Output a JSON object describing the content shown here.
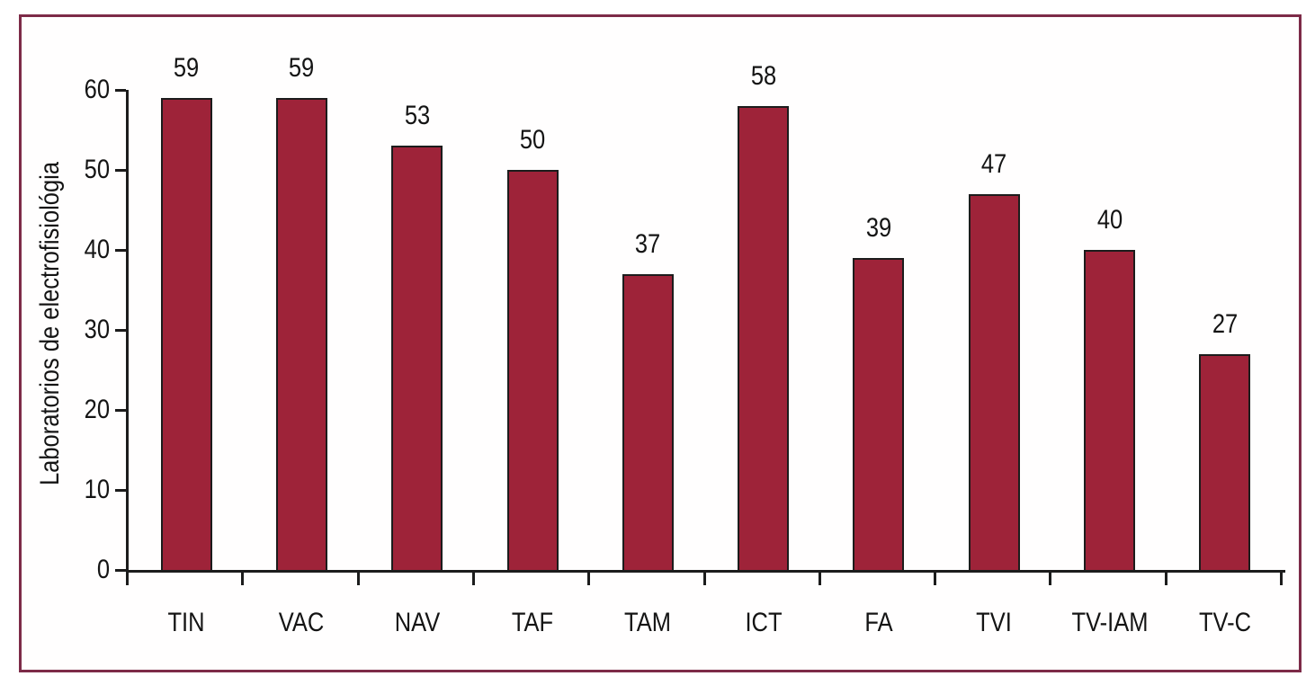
{
  "figure": {
    "kind": "bar chart",
    "frame_border_color": "#7d2b48"
  },
  "chart_data": {
    "type": "bar",
    "categories": [
      "TIN",
      "VAC",
      "NAV",
      "TAF",
      "TAM",
      "ICT",
      "FA",
      "TVI",
      "TV-IAM",
      "TV-C"
    ],
    "values": [
      59,
      59,
      53,
      50,
      37,
      58,
      39,
      47,
      40,
      27
    ],
    "value_labels": [
      59,
      59,
      53,
      50,
      37,
      58,
      39,
      47,
      40,
      27
    ],
    "title": "",
    "xlabel": "",
    "ylabel": "Laboratorios de electrofisiológia",
    "ylim": [
      0,
      60
    ],
    "yticks": [
      0,
      10,
      20,
      30,
      40,
      50,
      60
    ],
    "grid": false,
    "legend_position": "none",
    "bar_color": "#9e2339",
    "bar_border_color": "#1c1c1c",
    "axis_color": "#1c1c1c",
    "text_color": "#141414"
  }
}
